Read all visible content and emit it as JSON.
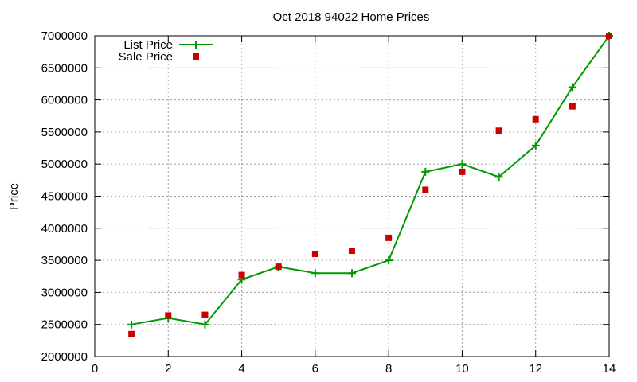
{
  "chart_data": {
    "type": "line",
    "title": "Oct 2018 94022 Home Prices",
    "xlabel": "",
    "ylabel": "Price",
    "xlim": [
      0,
      14
    ],
    "ylim": [
      2000000,
      7000000
    ],
    "x_ticks": [
      0,
      2,
      4,
      6,
      8,
      10,
      12,
      14
    ],
    "y_ticks": [
      2000000,
      2500000,
      3000000,
      3500000,
      4000000,
      4500000,
      5000000,
      5500000,
      6000000,
      6500000,
      7000000
    ],
    "grid": true,
    "legend_position": "top-left",
    "series": [
      {
        "name": "List Price",
        "style": "linespoints",
        "color": "#009900",
        "x": [
          1,
          2,
          3,
          4,
          5,
          6,
          7,
          8,
          9,
          10,
          11,
          12,
          13,
          14
        ],
        "values": [
          2500000,
          2600000,
          2500000,
          3200000,
          3400000,
          3300000,
          3300000,
          3500000,
          4880000,
          5000000,
          4800000,
          5290000,
          6200000,
          7000000
        ]
      },
      {
        "name": "Sale Price",
        "style": "points",
        "color": "#cc0000",
        "x": [
          1,
          2,
          3,
          4,
          5,
          6,
          7,
          8,
          9,
          10,
          11,
          12,
          13,
          14
        ],
        "values": [
          2350000,
          2640000,
          2650000,
          3270000,
          3400000,
          3600000,
          3650000,
          3850000,
          4600000,
          4880000,
          5520000,
          5700000,
          5900000,
          7000000
        ]
      }
    ]
  }
}
